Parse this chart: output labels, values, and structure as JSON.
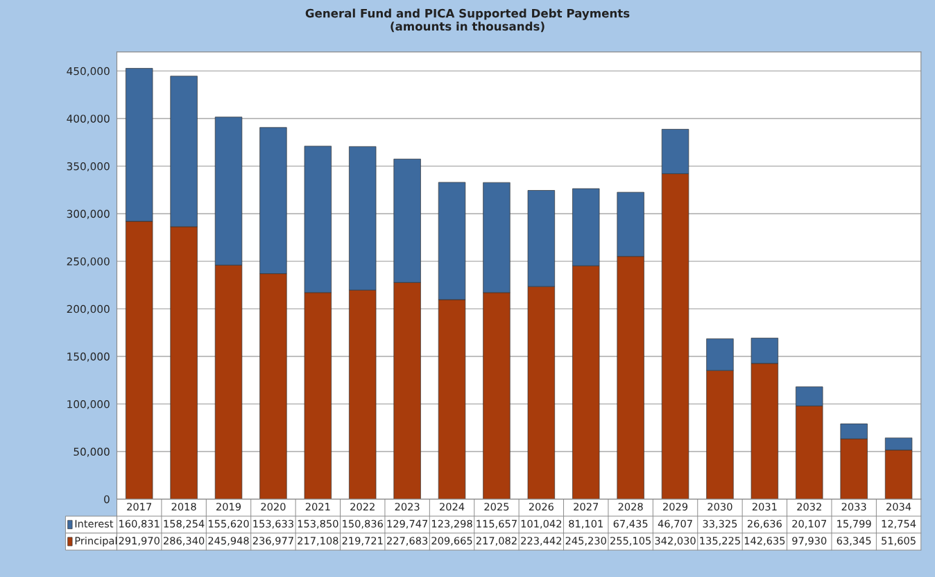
{
  "chart_data": {
    "type": "bar",
    "title": "General Fund and PICA Supported Debt Payments",
    "subtitle": "(amounts in thousands)",
    "categories": [
      "2017",
      "2018",
      "2019",
      "2020",
      "2021",
      "2022",
      "2023",
      "2024",
      "2025",
      "2026",
      "2027",
      "2028",
      "2029",
      "2030",
      "2031",
      "2032",
      "2033",
      "2034"
    ],
    "series": [
      {
        "name": "Principal",
        "color": "#a83c0c",
        "values": [
          291970,
          286340,
          245948,
          236977,
          217108,
          219721,
          227683,
          209665,
          217082,
          223442,
          245230,
          255105,
          342030,
          135225,
          142635,
          97930,
          63345,
          51605
        ],
        "value_labels": [
          "291,970",
          "286,340",
          "245,948",
          "236,977",
          "217,108",
          "219,721",
          "227,683",
          "209,665",
          "217,082",
          "223,442",
          "245,230",
          "255,105",
          "342,030",
          "135,225",
          "142,635",
          "97,930",
          "63,345",
          "51,605"
        ]
      },
      {
        "name": "Interest",
        "color": "#3d6a9e",
        "values": [
          160831,
          158254,
          155620,
          153633,
          153850,
          150836,
          129747,
          123298,
          115657,
          101042,
          81101,
          67435,
          46707,
          33325,
          26636,
          20107,
          15799,
          12754
        ],
        "value_labels": [
          "160,831",
          "158,254",
          "155,620",
          "153,633",
          "153,850",
          "150,836",
          "129,747",
          "123,298",
          "115,657",
          "101,042",
          "81,101",
          "67,435",
          "46,707",
          "33,325",
          "26,636",
          "20,107",
          "15,799",
          "12,754"
        ]
      }
    ],
    "stacked": true,
    "ylim": [
      0,
      470000
    ],
    "yticks": [
      {
        "value": 0,
        "label": "0"
      },
      {
        "value": 50000,
        "label": "50,000"
      },
      {
        "value": 100000,
        "label": "100,000"
      },
      {
        "value": 150000,
        "label": "150,000"
      },
      {
        "value": 200000,
        "label": "200,000"
      },
      {
        "value": 250000,
        "label": "250,000"
      },
      {
        "value": 300000,
        "label": "300,000"
      },
      {
        "value": 350000,
        "label": "350,000"
      },
      {
        "value": 400000,
        "label": "400,000"
      },
      {
        "value": 450000,
        "label": "450,000"
      }
    ],
    "grid": "y",
    "legend": "bottom"
  }
}
